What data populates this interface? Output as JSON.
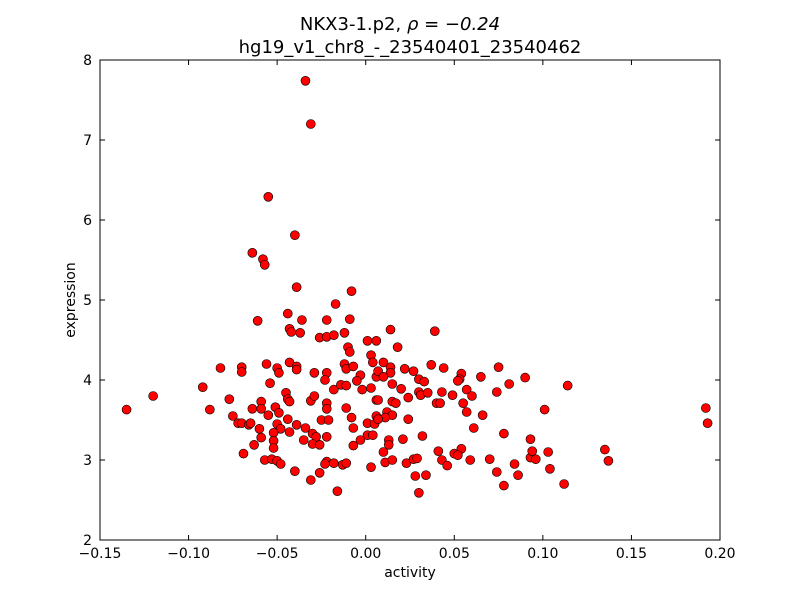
{
  "chart_data": {
    "type": "scatter",
    "title_prefix": "NKX3-1.p2, ",
    "title_math": "ρ = −0.24",
    "subtitle": "hg19_v1_chr8_-_23540401_23540462",
    "xlabel": "activity",
    "ylabel": "expression",
    "xlim": [
      -0.15,
      0.2
    ],
    "ylim": [
      2,
      8
    ],
    "xticks": [
      -0.15,
      -0.1,
      -0.05,
      0.0,
      0.05,
      0.1,
      0.15,
      0.2
    ],
    "xtick_labels": [
      "−0.15",
      "−0.10",
      "−0.05",
      "0.00",
      "0.05",
      "0.10",
      "0.15",
      "0.20"
    ],
    "yticks": [
      2,
      3,
      4,
      5,
      6,
      7,
      8
    ],
    "ytick_labels": [
      "2",
      "3",
      "4",
      "5",
      "6",
      "7",
      "8"
    ],
    "grid": false,
    "marker_color": "#ff0000",
    "marker_edge": "#000000",
    "points": [
      [
        -0.135,
        3.63
      ],
      [
        -0.12,
        3.8
      ],
      [
        -0.092,
        3.91
      ],
      [
        -0.088,
        3.63
      ],
      [
        -0.082,
        4.15
      ],
      [
        -0.07,
        4.16
      ],
      [
        -0.07,
        4.1
      ],
      [
        -0.034,
        7.74
      ],
      [
        -0.031,
        7.2
      ],
      [
        -0.055,
        6.29
      ],
      [
        -0.04,
        5.81
      ],
      [
        -0.064,
        5.59
      ],
      [
        -0.058,
        5.51
      ],
      [
        -0.057,
        5.44
      ],
      [
        -0.039,
        5.16
      ],
      [
        -0.008,
        5.11
      ],
      [
        -0.017,
        4.95
      ],
      [
        -0.044,
        4.83
      ],
      [
        -0.061,
        4.74
      ],
      [
        -0.036,
        4.75
      ],
      [
        -0.022,
        4.75
      ],
      [
        -0.009,
        4.76
      ],
      [
        -0.043,
        4.64
      ],
      [
        -0.042,
        4.6
      ],
      [
        -0.037,
        4.59
      ],
      [
        -0.026,
        4.53
      ],
      [
        -0.022,
        4.54
      ],
      [
        -0.018,
        4.56
      ],
      [
        -0.012,
        4.59
      ],
      [
        0.001,
        4.49
      ],
      [
        0.006,
        4.49
      ],
      [
        -0.01,
        4.41
      ],
      [
        -0.009,
        4.35
      ],
      [
        0.003,
        4.31
      ],
      [
        0.004,
        4.22
      ],
      [
        -0.056,
        4.2
      ],
      [
        -0.05,
        4.15
      ],
      [
        -0.049,
        4.09
      ],
      [
        -0.043,
        4.22
      ],
      [
        -0.039,
        4.17
      ],
      [
        -0.039,
        4.13
      ],
      [
        -0.029,
        4.09
      ],
      [
        -0.022,
        4.09
      ],
      [
        -0.023,
        4.0
      ],
      [
        -0.012,
        4.2
      ],
      [
        -0.011,
        4.14
      ],
      [
        -0.007,
        4.17
      ],
      [
        -0.003,
        4.06
      ],
      [
        -0.005,
        3.99
      ],
      [
        0.006,
        4.04
      ],
      [
        -0.054,
        3.96
      ],
      [
        -0.018,
        3.88
      ],
      [
        -0.014,
        3.94
      ],
      [
        -0.011,
        3.93
      ],
      [
        -0.002,
        3.88
      ],
      [
        0.003,
        3.9
      ],
      [
        -0.077,
        3.76
      ],
      [
        -0.059,
        3.73
      ],
      [
        -0.064,
        3.64
      ],
      [
        -0.059,
        3.64
      ],
      [
        -0.045,
        3.84
      ],
      [
        -0.044,
        3.76
      ],
      [
        -0.043,
        3.73
      ],
      [
        -0.031,
        3.74
      ],
      [
        -0.029,
        3.8
      ],
      [
        -0.022,
        3.71
      ],
      [
        -0.022,
        3.64
      ],
      [
        -0.011,
        3.65
      ],
      [
        0.006,
        3.75
      ],
      [
        -0.051,
        3.66
      ],
      [
        -0.049,
        3.59
      ],
      [
        -0.055,
        3.56
      ],
      [
        -0.075,
        3.55
      ],
      [
        -0.072,
        3.46
      ],
      [
        -0.07,
        3.46
      ],
      [
        -0.066,
        3.44
      ],
      [
        -0.065,
        3.46
      ],
      [
        -0.044,
        3.51
      ],
      [
        -0.039,
        3.44
      ],
      [
        -0.034,
        3.4
      ],
      [
        -0.025,
        3.5
      ],
      [
        -0.021,
        3.5
      ],
      [
        -0.008,
        3.53
      ],
      [
        -0.007,
        3.4
      ],
      [
        0.001,
        3.46
      ],
      [
        0.005,
        3.45
      ],
      [
        0.006,
        3.55
      ],
      [
        -0.06,
        3.39
      ],
      [
        -0.05,
        3.45
      ],
      [
        -0.048,
        3.39
      ],
      [
        -0.052,
        3.34
      ],
      [
        -0.043,
        3.35
      ],
      [
        -0.03,
        3.33
      ],
      [
        -0.028,
        3.29
      ],
      [
        -0.022,
        3.29
      ],
      [
        0.001,
        3.31
      ],
      [
        0.004,
        3.31
      ],
      [
        -0.003,
        3.25
      ],
      [
        -0.059,
        3.28
      ],
      [
        -0.052,
        3.24
      ],
      [
        -0.035,
        3.25
      ],
      [
        -0.03,
        3.2
      ],
      [
        -0.026,
        3.19
      ],
      [
        -0.063,
        3.19
      ],
      [
        -0.052,
        3.15
      ],
      [
        -0.007,
        3.18
      ],
      [
        -0.069,
        3.08
      ],
      [
        -0.057,
        3.0
      ],
      [
        -0.053,
        3.01
      ],
      [
        -0.05,
        2.99
      ],
      [
        -0.048,
        2.95
      ],
      [
        -0.022,
        2.98
      ],
      [
        -0.023,
        2.95
      ],
      [
        -0.018,
        2.96
      ],
      [
        -0.013,
        2.94
      ],
      [
        -0.011,
        2.96
      ],
      [
        0.003,
        2.91
      ],
      [
        -0.04,
        2.86
      ],
      [
        -0.026,
        2.84
      ],
      [
        -0.031,
        2.75
      ],
      [
        -0.016,
        2.61
      ],
      [
        0.014,
        4.63
      ],
      [
        0.039,
        4.61
      ],
      [
        0.018,
        4.41
      ],
      [
        0.01,
        4.22
      ],
      [
        0.014,
        4.16
      ],
      [
        0.014,
        4.09
      ],
      [
        0.007,
        4.11
      ],
      [
        0.022,
        4.14
      ],
      [
        0.027,
        4.11
      ],
      [
        0.037,
        4.19
      ],
      [
        0.044,
        4.15
      ],
      [
        0.054,
        4.08
      ],
      [
        0.053,
        4.01
      ],
      [
        0.052,
        3.99
      ],
      [
        0.065,
        4.04
      ],
      [
        0.01,
        4.04
      ],
      [
        0.03,
        4.01
      ],
      [
        0.033,
        3.98
      ],
      [
        0.015,
        3.95
      ],
      [
        0.02,
        3.89
      ],
      [
        0.03,
        3.85
      ],
      [
        0.031,
        3.81
      ],
      [
        0.035,
        3.84
      ],
      [
        0.043,
        3.85
      ],
      [
        0.049,
        3.81
      ],
      [
        0.057,
        3.88
      ],
      [
        0.06,
        3.8
      ],
      [
        0.024,
        3.78
      ],
      [
        0.007,
        3.75
      ],
      [
        0.015,
        3.73
      ],
      [
        0.017,
        3.71
      ],
      [
        0.04,
        3.71
      ],
      [
        0.042,
        3.71
      ],
      [
        0.055,
        3.71
      ],
      [
        0.057,
        3.6
      ],
      [
        0.066,
        3.56
      ],
      [
        0.012,
        3.6
      ],
      [
        0.015,
        3.56
      ],
      [
        0.011,
        3.53
      ],
      [
        0.007,
        3.51
      ],
      [
        0.024,
        3.51
      ],
      [
        0.061,
        3.4
      ],
      [
        0.013,
        3.25
      ],
      [
        0.013,
        3.19
      ],
      [
        0.021,
        3.26
      ],
      [
        0.032,
        3.3
      ],
      [
        0.01,
        3.1
      ],
      [
        0.041,
        3.11
      ],
      [
        0.054,
        3.14
      ],
      [
        0.05,
        3.08
      ],
      [
        0.052,
        3.06
      ],
      [
        0.011,
        2.97
      ],
      [
        0.015,
        3.0
      ],
      [
        0.023,
        2.96
      ],
      [
        0.027,
        3.01
      ],
      [
        0.029,
        3.02
      ],
      [
        0.043,
        3.0
      ],
      [
        0.046,
        2.93
      ],
      [
        0.059,
        3.0
      ],
      [
        0.07,
        3.01
      ],
      [
        0.028,
        2.8
      ],
      [
        0.034,
        2.81
      ],
      [
        0.03,
        2.59
      ],
      [
        0.074,
        3.85
      ],
      [
        0.075,
        4.16
      ],
      [
        0.081,
        3.95
      ],
      [
        0.09,
        4.03
      ],
      [
        0.101,
        3.63
      ],
      [
        0.114,
        3.93
      ],
      [
        0.074,
        2.85
      ],
      [
        0.078,
        2.68
      ],
      [
        0.078,
        3.33
      ],
      [
        0.084,
        2.95
      ],
      [
        0.086,
        2.81
      ],
      [
        0.093,
        3.03
      ],
      [
        0.096,
        3.01
      ],
      [
        0.093,
        3.26
      ],
      [
        0.094,
        3.11
      ],
      [
        0.103,
        3.1
      ],
      [
        0.104,
        2.89
      ],
      [
        0.112,
        2.7
      ],
      [
        0.135,
        3.13
      ],
      [
        0.137,
        2.99
      ],
      [
        0.192,
        3.65
      ],
      [
        0.193,
        3.46
      ]
    ]
  }
}
